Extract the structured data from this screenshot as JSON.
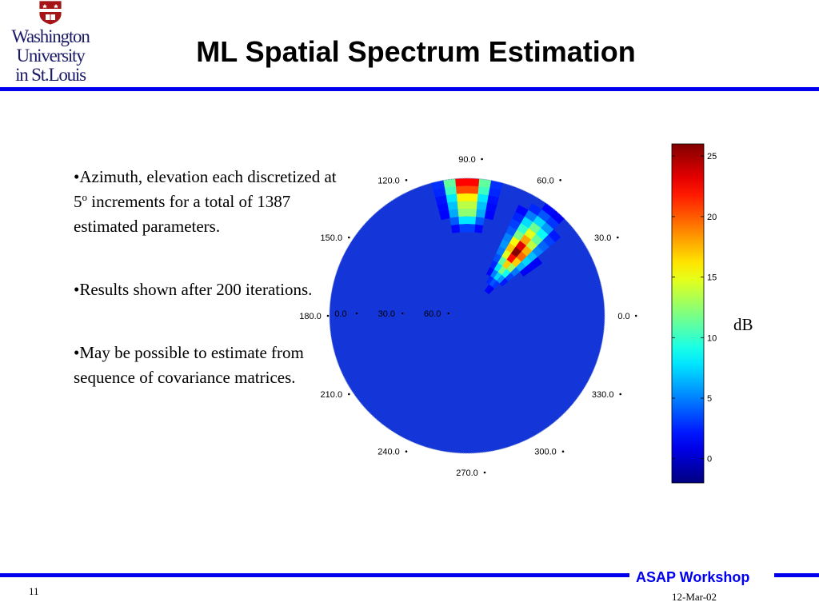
{
  "logo": {
    "lines": [
      "Washington",
      "University",
      "in St.Louis"
    ],
    "icon": "university-shield-icon",
    "shield_color": "#a51417"
  },
  "slide": {
    "title": "ML Spatial Spectrum Estimation",
    "bullets": [
      {
        "pre": "•Azimuth, elevation each discretized at 5",
        "sup": "o",
        "post": " increments for a total of 1387 estimated parameters."
      },
      {
        "pre": "•Results shown after 200 iterations.",
        "sup": "",
        "post": ""
      },
      {
        "pre": "•May be possible to estimate from sequence of covariance matrices.",
        "sup": "",
        "post": ""
      }
    ],
    "colorbar_unit": "dB"
  },
  "footer": {
    "workshop": "ASAP Workshop",
    "page_number": "11",
    "date": "12-Mar-02"
  },
  "colors": {
    "rule": "#0000ee",
    "workshop_text": "#0000ee",
    "background_field": "#1436d8"
  },
  "chart_data": {
    "type": "heatmap",
    "projection": "polar",
    "azimuth_labels": [
      "0.0",
      "30.0",
      "60.0",
      "90.0",
      "120.0",
      "150.0",
      "180.0",
      "210.0",
      "240.0",
      "270.0",
      "300.0",
      "330.0"
    ],
    "elevation_labels": [
      "0.0",
      "30.0",
      "60.0"
    ],
    "azimuth_step_deg": 5,
    "elevation_step_deg": 5,
    "colorbar": {
      "ticks": [
        0,
        5,
        10,
        15,
        20,
        25
      ],
      "min": -2,
      "max": 26,
      "colormap": "jet"
    },
    "peaks": [
      {
        "azimuth_deg": 90,
        "elevation_from_deg": 0,
        "elevation_to_deg": 25,
        "value_db": 26
      },
      {
        "azimuth_deg": 52,
        "elevation_from_deg": 15,
        "elevation_to_deg": 55,
        "value_db": 26
      }
    ],
    "background_db": 0
  }
}
